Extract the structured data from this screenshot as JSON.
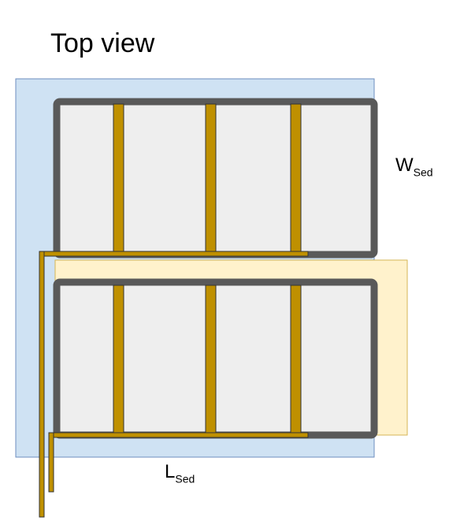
{
  "title": "Top view",
  "width_label": {
    "main": "W",
    "sub": "Sed"
  },
  "length_label": {
    "main": "L",
    "sub": "Sed"
  },
  "colors": {
    "substrate_fill": "#cfe2f3",
    "substrate_stroke": "#6c8ebf",
    "offset_layer_fill": "#fff2cc",
    "offset_layer_stroke": "#d6b656",
    "electrode_frame": "#595959",
    "cell_fill": "#eeeeee",
    "busbar_fill": "#bf9000",
    "busbar_stroke": "#333333"
  }
}
